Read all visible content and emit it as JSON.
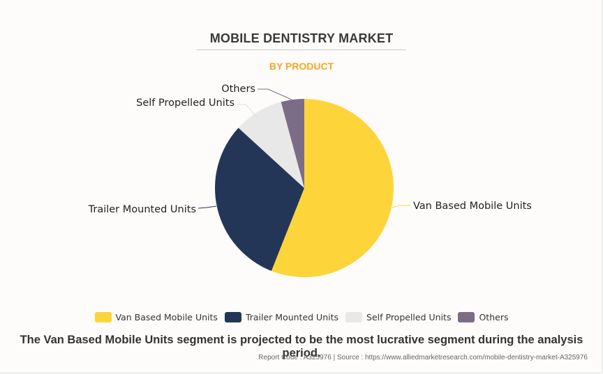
{
  "header": {
    "title": "MOBILE DENTISTRY MARKET",
    "subtitle": "BY PRODUCT"
  },
  "chart_data": {
    "type": "pie",
    "title": "MOBILE DENTISTRY MARKET",
    "subtitle": "BY PRODUCT",
    "categories": [
      "Van Based Mobile Units",
      "Trailer Mounted Units",
      "Self Propelled Units",
      "Others"
    ],
    "values": [
      56,
      30.8,
      9,
      4.2
    ],
    "unit": "% share (estimated from slice angles)",
    "colors": [
      "#fed43b",
      "#243657",
      "#e8e8e8",
      "#7b6d85"
    ],
    "start_angle": "12 o'clock, clockwise",
    "legend_position": "bottom",
    "labels_shown": true
  },
  "legend": {
    "items": [
      {
        "label": "Van Based Mobile Units",
        "color": "#fed43b"
      },
      {
        "label": "Trailer Mounted Units",
        "color": "#243657"
      },
      {
        "label": "Self Propelled Units",
        "color": "#e8e8e8"
      },
      {
        "label": "Others",
        "color": "#7b6d85"
      }
    ]
  },
  "pie_labels": {
    "van": "Van Based Mobile Units",
    "trailer": "Trailer Mounted Units",
    "self": "Self Propelled Units",
    "others": "Others"
  },
  "footer": {
    "caption": "The Van Based Mobile Units segment is projected to be the most lucrative segment during the analysis period.",
    "source": "Report Code : A325976  |  Source : https://www.alliedmarketresearch.com/mobile-dentistry-market-A325976"
  }
}
